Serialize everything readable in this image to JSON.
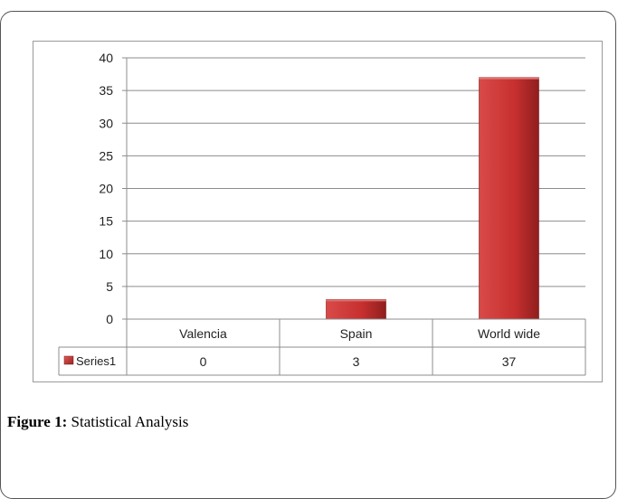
{
  "chart_data": {
    "type": "bar",
    "categories": [
      "Valencia",
      "Spain",
      "World wide"
    ],
    "series": [
      {
        "name": "Series1",
        "values": [
          0,
          3,
          37
        ],
        "color": "#c0302f"
      }
    ],
    "y_ticks": [
      0,
      5,
      10,
      15,
      20,
      25,
      30,
      35,
      40
    ],
    "ylim": [
      0,
      40
    ],
    "grid": true,
    "legend": "data-table-left"
  },
  "figure": {
    "caption_label": "Figure 1:",
    "caption_text": "Statistical Analysis"
  }
}
